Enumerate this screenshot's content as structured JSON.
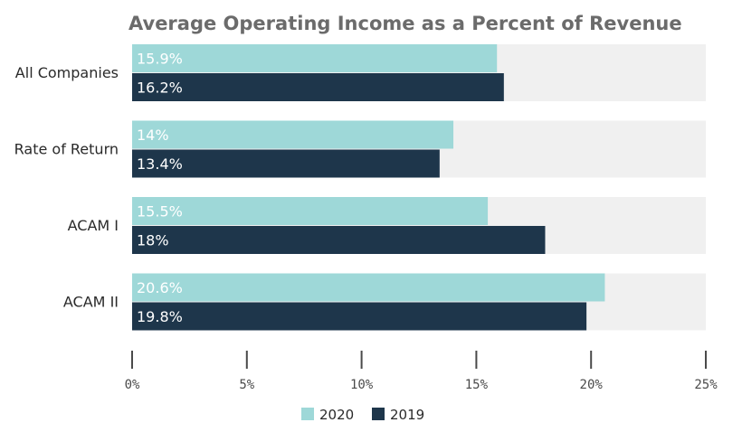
{
  "chart_data": {
    "type": "bar",
    "orientation": "horizontal",
    "title": "Average Operating Income as a Percent of Revenue",
    "categories": [
      "All Companies",
      "Rate of Return",
      "ACAM I",
      "ACAM II"
    ],
    "series": [
      {
        "name": "2020",
        "values": [
          15.9,
          14,
          15.5,
          20.6
        ],
        "labels": [
          "15.9%",
          "14%",
          "15.5%",
          "20.6%"
        ],
        "color": "#9ed8d8",
        "label_color": "#ffffff"
      },
      {
        "name": "2019",
        "values": [
          16.2,
          13.4,
          18,
          19.8
        ],
        "labels": [
          "16.2%",
          "13.4%",
          "18%",
          "19.8%"
        ],
        "color": "#1e364b",
        "label_color": "#ffffff"
      }
    ],
    "xlim": [
      0,
      25
    ],
    "ticks": [
      0,
      5,
      10,
      15,
      20,
      25
    ],
    "tick_labels": [
      "0%",
      "5%",
      "10%",
      "15%",
      "20%",
      "25%"
    ],
    "background_track_color": "#f0f0f0",
    "legend_position": "bottom-center"
  }
}
